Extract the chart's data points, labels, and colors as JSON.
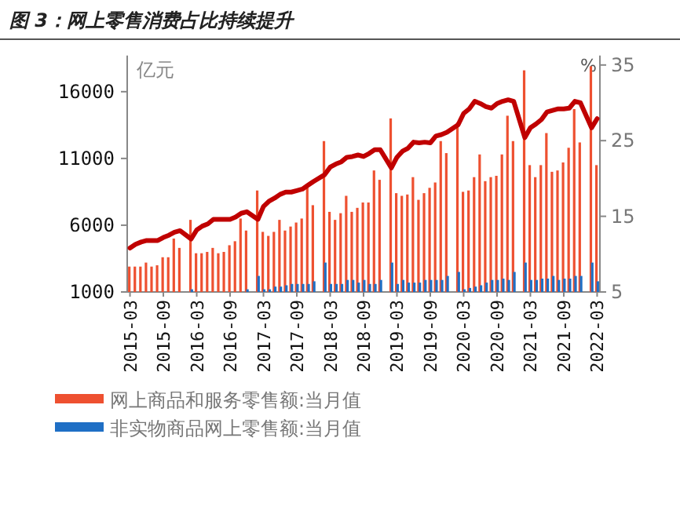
{
  "chart_data": {
    "type": "bar",
    "title": "图 3：网上零售消费占比持续提升",
    "ylabel": "亿元",
    "y2label": "%",
    "categories": [
      "2015-03",
      null,
      null,
      null,
      null,
      null,
      "2015-09",
      null,
      null,
      null,
      null,
      null,
      "2016-03",
      null,
      null,
      null,
      null,
      null,
      "2016-09",
      null,
      null,
      null,
      null,
      null,
      "2017-03",
      null,
      null,
      null,
      null,
      null,
      "2017-09",
      null,
      null,
      null,
      null,
      null,
      "2018-03",
      null,
      null,
      null,
      null,
      null,
      "2018-09",
      null,
      null,
      null,
      null,
      null,
      "2019-03",
      null,
      null,
      null,
      null,
      null,
      "2019-09",
      null,
      null,
      null,
      null,
      null,
      "2020-03",
      null,
      null,
      null,
      null,
      null,
      "2020-09",
      null,
      null,
      null,
      null,
      null,
      "2021-03",
      null,
      null,
      null,
      null,
      null,
      "2021-09",
      null,
      null,
      null,
      null,
      null,
      "2022-03"
    ],
    "series": [
      {
        "name": "网上商品和服务零售额:当月值",
        "color": "#ee5030",
        "values": [
          2900,
          2900,
          2900,
          3200,
          2900,
          3000,
          3600,
          3600,
          5000,
          4300,
          null,
          6400,
          3900,
          3900,
          4000,
          4300,
          3900,
          4000,
          4500,
          4800,
          6500,
          5600,
          null,
          8600,
          5500,
          5200,
          5500,
          6400,
          5600,
          5900,
          6200,
          6500,
          9100,
          7500,
          null,
          12300,
          7000,
          6400,
          6900,
          8200,
          7000,
          7300,
          7700,
          7700,
          10100,
          9400,
          null,
          14000,
          8400,
          8200,
          8300,
          9600,
          7900,
          8400,
          8800,
          9200,
          12300,
          11400,
          null,
          13700,
          8500,
          8600,
          9600,
          11300,
          9300,
          9600,
          9700,
          11300,
          14200,
          12300,
          null,
          17600,
          10500,
          9600,
          10500,
          12900,
          10000,
          10100,
          10700,
          11800,
          14700,
          12200,
          null,
          17900,
          10500
        ]
      },
      {
        "name": "非实物商品网上零售额:当月值",
        "color": "#1f6fc5",
        "values": [
          null,
          null,
          null,
          null,
          null,
          null,
          null,
          null,
          null,
          null,
          null,
          1200,
          null,
          null,
          null,
          null,
          null,
          null,
          null,
          null,
          null,
          1200,
          null,
          2200,
          1200,
          1200,
          1400,
          1400,
          1500,
          1600,
          1600,
          1600,
          1600,
          1800,
          null,
          3200,
          1600,
          1600,
          1600,
          1900,
          1900,
          1700,
          1900,
          1600,
          1600,
          1900,
          null,
          3200,
          1600,
          1900,
          1700,
          1700,
          1700,
          1900,
          1900,
          1900,
          1900,
          2200,
          null,
          2500,
          1200,
          1300,
          1400,
          1500,
          1700,
          1900,
          1900,
          2000,
          1900,
          2500,
          null,
          3200,
          1900,
          1900,
          2000,
          2000,
          2200,
          1900,
          2000,
          2000,
          2200,
          2200,
          null,
          3200,
          1800
        ]
      },
      {
        "type": "line",
        "axis": "y2",
        "color": "#c00000",
        "values": [
          10.8,
          11.3,
          11.6,
          11.8,
          11.8,
          11.8,
          12.2,
          12.5,
          12.9,
          13.1,
          null,
          12.0,
          13.2,
          13.7,
          14.0,
          14.6,
          14.6,
          14.6,
          14.6,
          14.9,
          15.4,
          15.6,
          null,
          14.6,
          16.3,
          17.0,
          17.4,
          17.9,
          18.2,
          18.2,
          18.4,
          18.6,
          19.1,
          19.6,
          null,
          20.5,
          21.5,
          21.9,
          22.2,
          22.8,
          22.9,
          23.1,
          22.9,
          23.3,
          23.8,
          23.8,
          null,
          21.4,
          22.8,
          23.6,
          24.0,
          24.8,
          24.7,
          24.8,
          24.7,
          25.6,
          25.8,
          26.1,
          null,
          27.1,
          28.6,
          29.2,
          30.2,
          29.9,
          29.5,
          29.3,
          29.9,
          30.2,
          30.4,
          30.2,
          null,
          25.4,
          26.7,
          27.2,
          27.8,
          28.8,
          29.0,
          29.2,
          29.2,
          29.3,
          30.2,
          30.0,
          null,
          26.7,
          27.9
        ]
      }
    ],
    "ylim": [
      1000,
      18000
    ],
    "yticks": [
      1000,
      6000,
      11000,
      16000
    ],
    "y2lim": [
      5,
      35
    ],
    "y2ticks": [
      5,
      15,
      25,
      35
    ],
    "legend": "bottom",
    "grid": false
  }
}
